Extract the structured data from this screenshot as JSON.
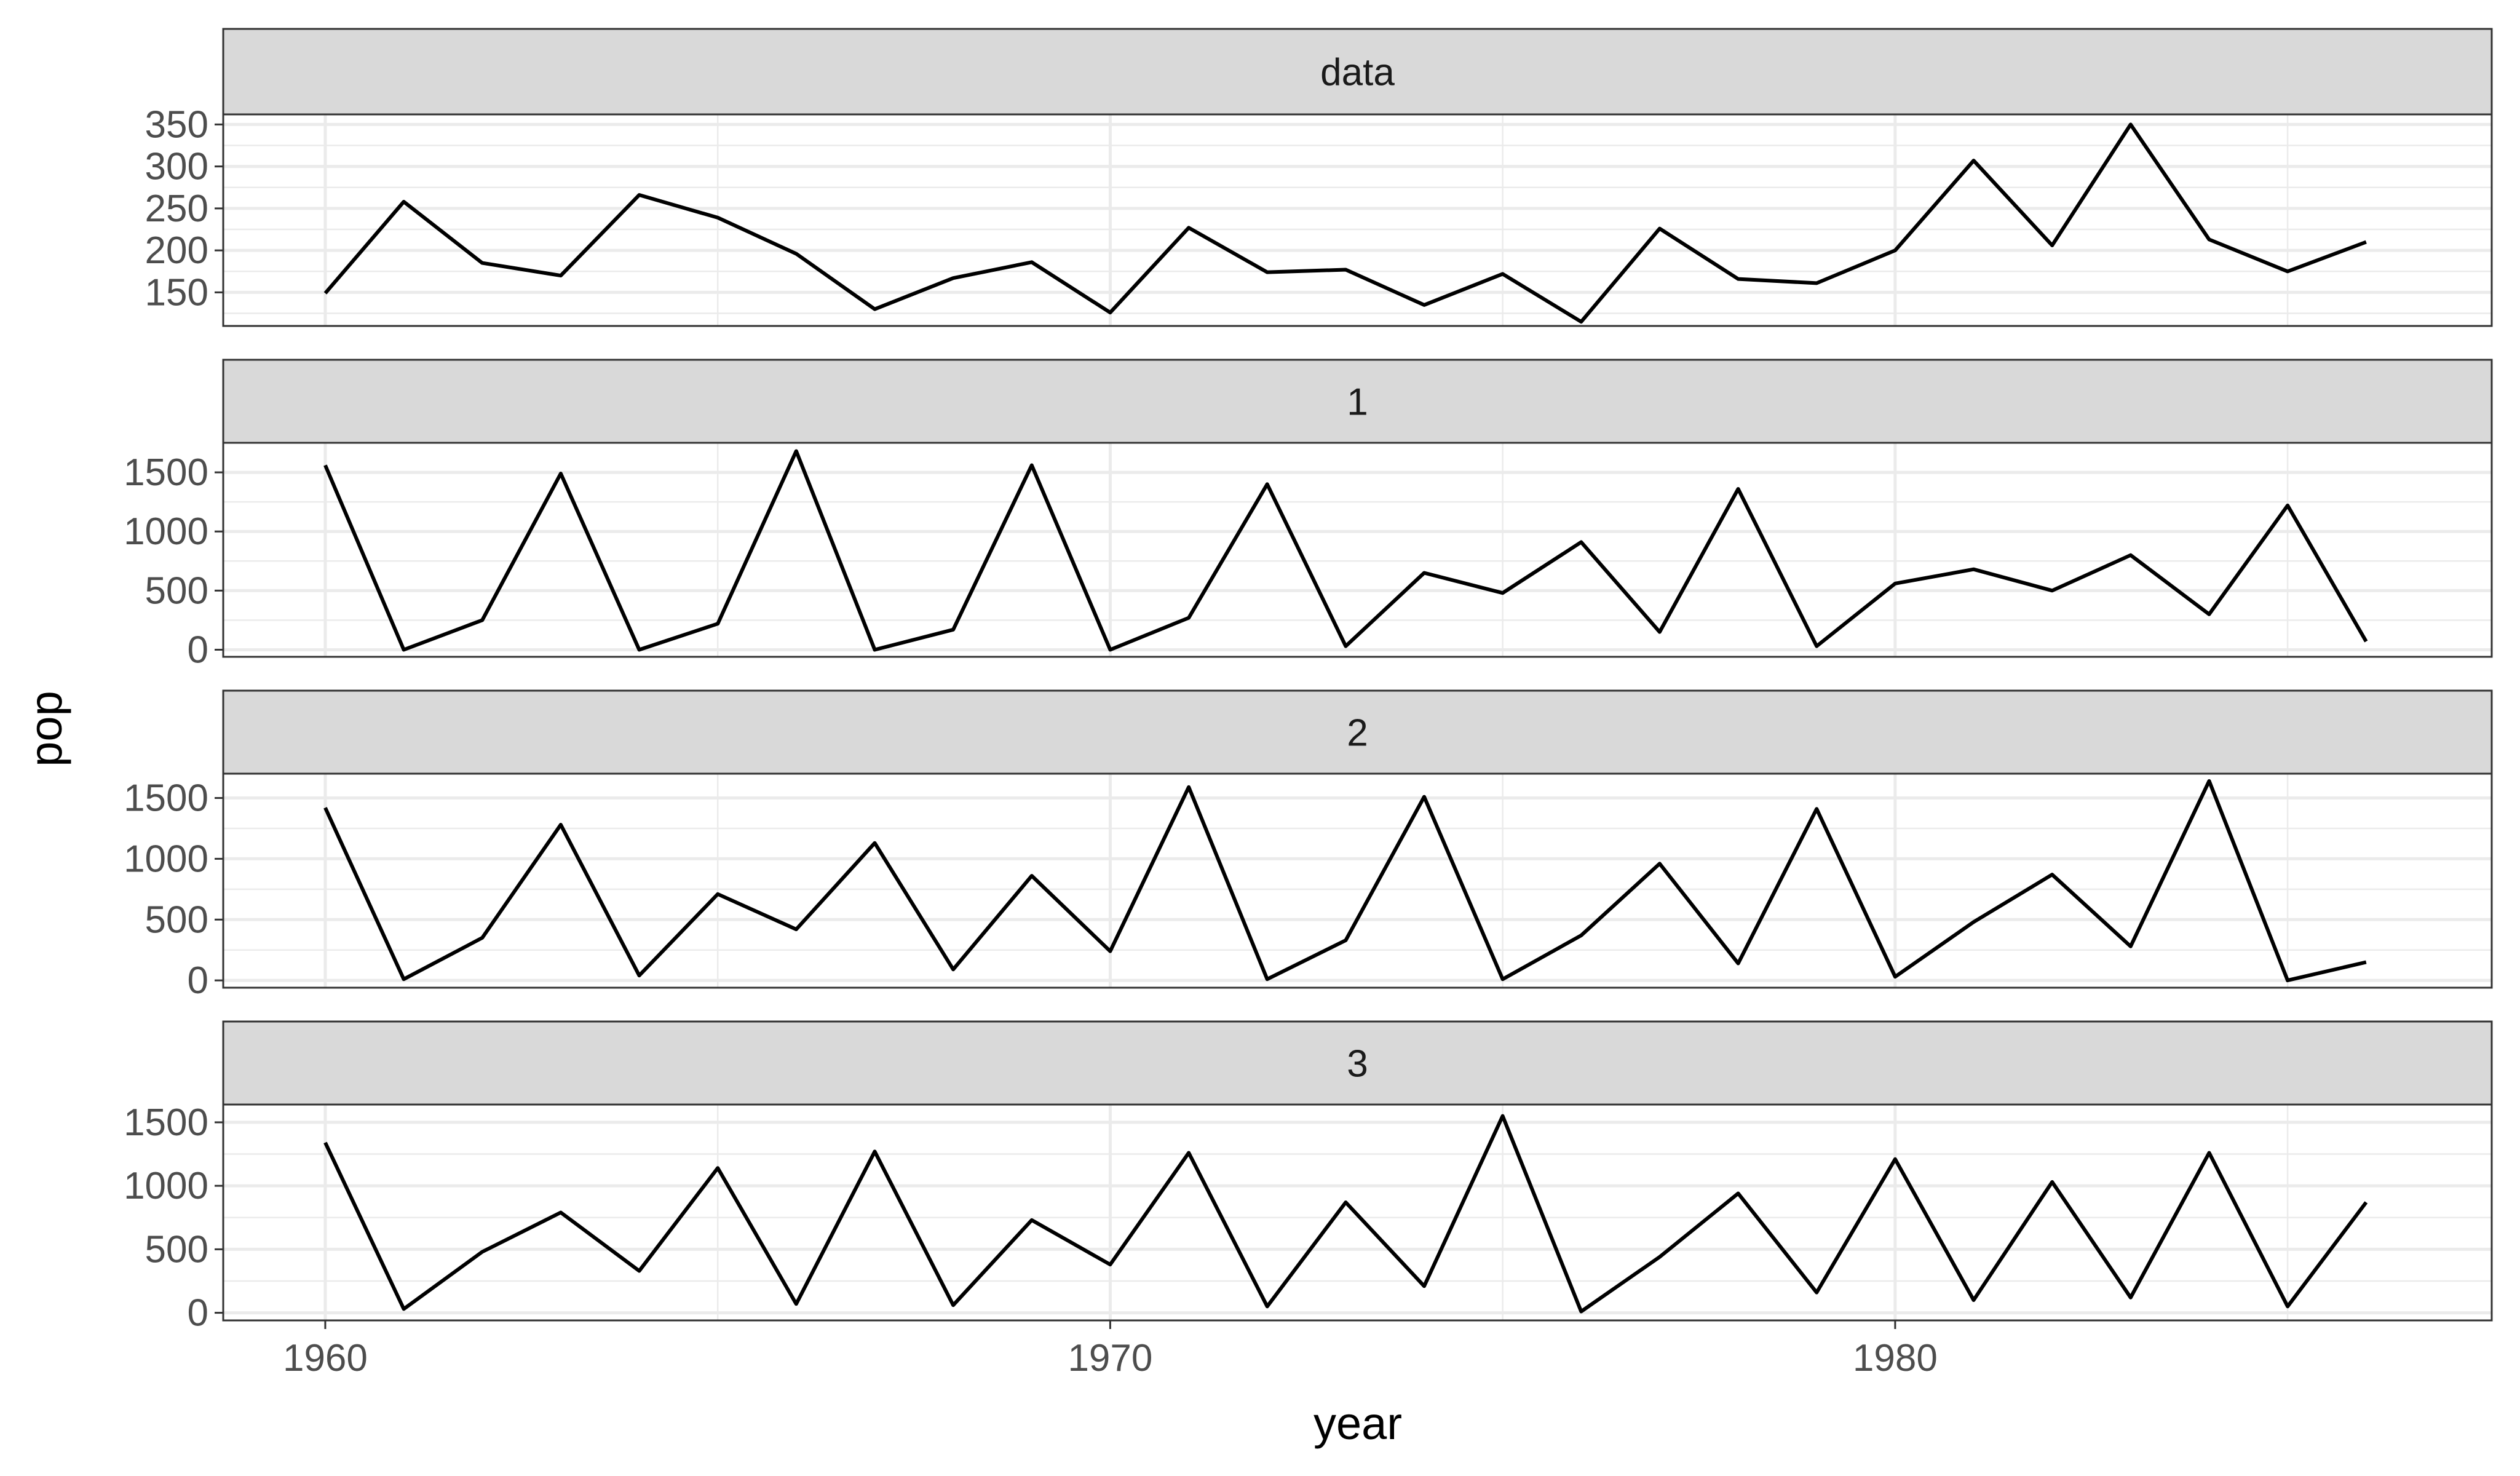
{
  "chart_data": {
    "type": "line",
    "layout": "faceted-vertical",
    "xlabel": "year",
    "ylabel": "pop",
    "xlim": [
      1958.7,
      1987.6
    ],
    "x_ticks": [
      1960,
      1970,
      1980
    ],
    "x": [
      1960,
      1961,
      1962,
      1963,
      1964,
      1965,
      1966,
      1967,
      1968,
      1969,
      1970,
      1971,
      1972,
      1973,
      1974,
      1975,
      1976,
      1977,
      1978,
      1979,
      1980,
      1981,
      1982,
      1983,
      1984,
      1985,
      1986
    ],
    "panels": [
      {
        "strip": "data",
        "ylim": [
          110,
          362
        ],
        "y_ticks": [
          150,
          200,
          250,
          300,
          350
        ],
        "values": [
          149,
          258,
          185,
          170,
          266,
          239,
          196,
          130,
          167,
          186,
          126,
          227,
          174,
          177,
          135,
          172,
          115,
          226,
          166,
          161,
          200,
          307,
          206,
          350,
          213,
          175,
          210
        ]
      },
      {
        "strip": "1",
        "ylim": [
          -60,
          1750
        ],
        "y_ticks": [
          0,
          500,
          1000,
          1500
        ],
        "values": [
          1560,
          0,
          250,
          1490,
          0,
          220,
          1680,
          0,
          170,
          1560,
          0,
          270,
          1400,
          30,
          650,
          480,
          910,
          150,
          1360,
          30,
          560,
          680,
          500,
          800,
          300,
          1220,
          70
        ]
      },
      {
        "strip": "2",
        "ylim": [
          -60,
          1700
        ],
        "y_ticks": [
          0,
          500,
          1000,
          1500
        ],
        "values": [
          1420,
          10,
          350,
          1280,
          40,
          710,
          420,
          1130,
          90,
          860,
          240,
          1590,
          10,
          330,
          1510,
          10,
          370,
          960,
          140,
          1410,
          30,
          480,
          870,
          280,
          1640,
          0,
          150
        ]
      },
      {
        "strip": "3",
        "ylim": [
          -60,
          1640
        ],
        "y_ticks": [
          0,
          500,
          1000,
          1500
        ],
        "values": [
          1340,
          30,
          480,
          790,
          330,
          1140,
          70,
          1270,
          60,
          730,
          380,
          1260,
          50,
          870,
          210,
          1550,
          10,
          440,
          940,
          160,
          1210,
          100,
          1030,
          120,
          1260,
          50,
          870
        ]
      }
    ]
  }
}
